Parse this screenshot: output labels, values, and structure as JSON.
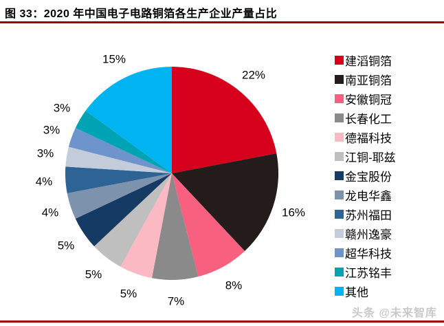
{
  "title": "图 33：2020 年中国电子电路铜箔各生产企业产量占比",
  "accent_color": "#a00000",
  "watermark": "头条 @未来智库",
  "watermark_color": "#c9c9c9",
  "chart_data": {
    "type": "pie",
    "title": "2020 年中国电子电路铜箔各生产企业产量占比",
    "categories": [
      "建滔铜箔",
      "南亚铜箔",
      "安徽铜冠",
      "长春化工",
      "德福科技",
      "江铜-耶兹",
      "金宝股份",
      "龙电华鑫",
      "苏州福田",
      "赣州逸豪",
      "超华科技",
      "江苏铭丰",
      "其他"
    ],
    "values": [
      22,
      16,
      8,
      7,
      5,
      5,
      5,
      4,
      4,
      3,
      3,
      3,
      15
    ],
    "labels": [
      "22%",
      "16%",
      "8%",
      "7%",
      "5%",
      "5%",
      "5%",
      "4%",
      "4%",
      "3%",
      "3%",
      "3%",
      "15%"
    ],
    "colors": [
      "#d6001c",
      "#231c1a",
      "#f8607f",
      "#8a8a8a",
      "#fbb9c3",
      "#bfbfbf",
      "#153a64",
      "#7d92ac",
      "#2e6396",
      "#c3ccda",
      "#6e94cb",
      "#00a3b4",
      "#00b4f2"
    ],
    "unit": "%",
    "start_angle_deg": 0,
    "direction": "clockwise",
    "legend_position": "right",
    "data_labels": "outside"
  }
}
